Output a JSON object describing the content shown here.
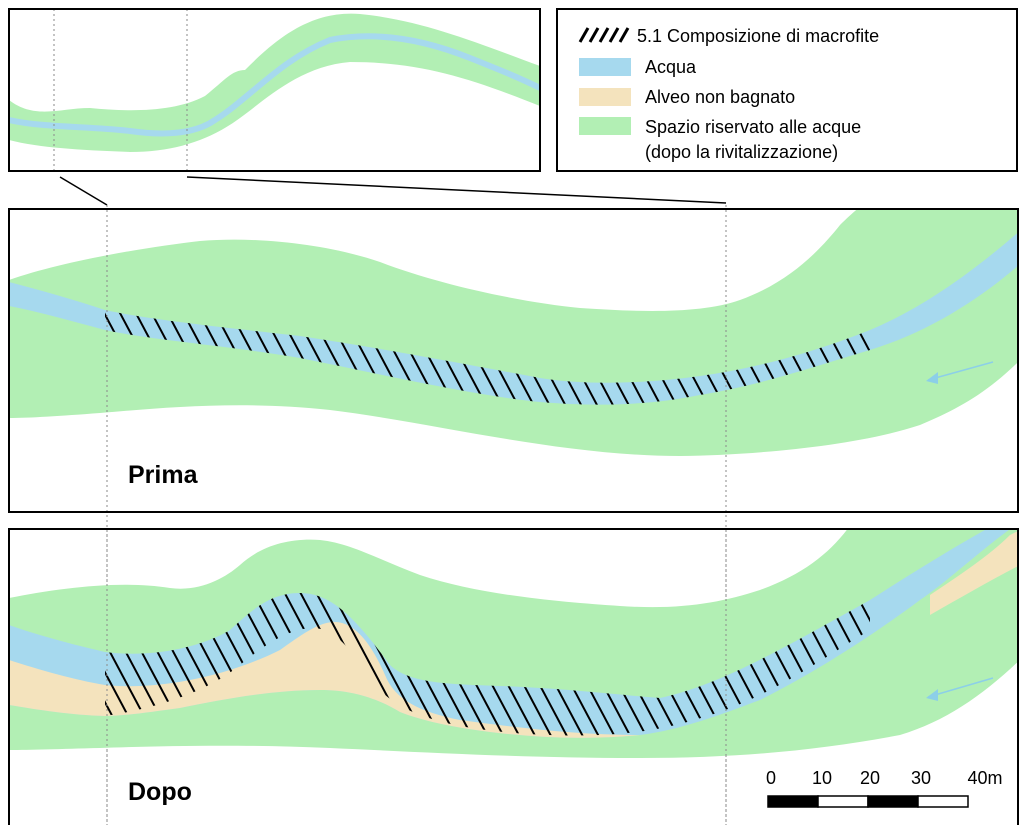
{
  "legend": {
    "items": [
      {
        "key": "macrophytes",
        "label": "5.1 Composizione di macrofite",
        "swatch": "hatch"
      },
      {
        "key": "water",
        "label": "Acqua",
        "color": "#a6d9ee"
      },
      {
        "key": "dry_bed",
        "label": "Alveo non bagnato",
        "color": "#f4e3bd"
      },
      {
        "key": "reserved_space",
        "label": "Spazio riservato alle acque",
        "label2": "(dopo la rivitalizzazione)",
        "color": "#b2efb4"
      }
    ]
  },
  "panels": {
    "before": {
      "title": "Prima"
    },
    "after": {
      "title": "Dopo"
    }
  },
  "scale_bar": {
    "labels": [
      "0",
      "10",
      "20",
      "30",
      "40m"
    ]
  },
  "colors": {
    "water": "#a6d9ee",
    "dry_bed": "#f4e3bd",
    "reserved_space": "#b2efb4",
    "flow_arrow": "#8ccfe8"
  },
  "icons": {
    "flow_direction": "arrow-left-icon"
  }
}
